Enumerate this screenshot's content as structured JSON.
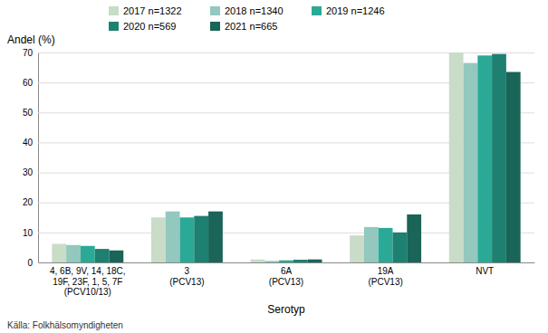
{
  "chart_data": {
    "type": "bar",
    "categories": [
      "4, 6B, 9V, 14, 18C,\n19F, 23F, 1, 5, 7F\n(PCV10/13)",
      "3\n(PCV13)",
      "6A\n(PCV13)",
      "19A\n(PCV13)",
      "NVT"
    ],
    "series": [
      {
        "name": "2017 n=1322",
        "color": "#c8dcc8",
        "values": [
          6.2,
          15.0,
          1.0,
          9.0,
          70.0
        ]
      },
      {
        "name": "2018 n=1340",
        "color": "#92c8be",
        "values": [
          5.8,
          17.0,
          0.5,
          11.8,
          66.5
        ]
      },
      {
        "name": "2019 n=1246",
        "color": "#2aaa96",
        "values": [
          5.5,
          15.0,
          0.7,
          11.5,
          69.0
        ]
      },
      {
        "name": "2020 n=569",
        "color": "#1e8070",
        "values": [
          4.5,
          15.5,
          0.9,
          10.0,
          69.5
        ]
      },
      {
        "name": "2021 n=665",
        "color": "#1a6458",
        "values": [
          4.0,
          17.0,
          1.0,
          16.0,
          63.5
        ]
      }
    ],
    "xlabel": "Serotyp",
    "ylabel": "Andel (%)",
    "source": "Källa: Folkhälsomyndigheten",
    "ylim": [
      0,
      70
    ],
    "yticks": [
      0,
      10,
      20,
      30,
      40,
      50,
      60,
      70
    ],
    "grid": true,
    "legend": "top"
  }
}
